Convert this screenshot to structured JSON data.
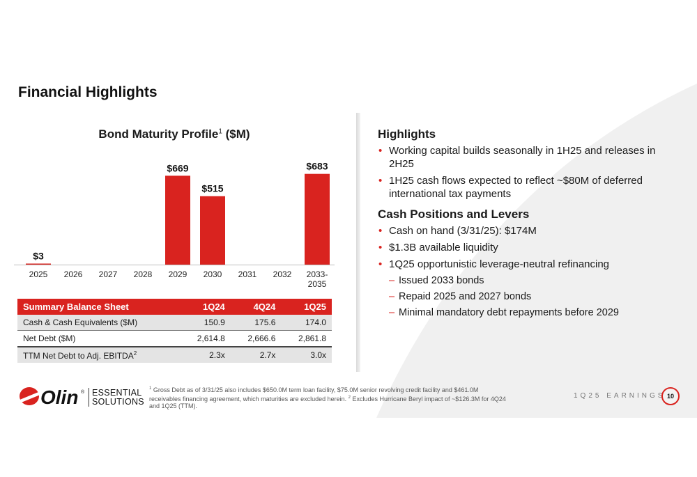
{
  "page": {
    "title": "Financial Highlights"
  },
  "chart_data": {
    "type": "bar",
    "title": "Bond Maturity Profile",
    "title_sup": "1",
    "title_unit": "($M)",
    "categories": [
      "2025",
      "2026",
      "2027",
      "2028",
      "2029",
      "2030",
      "2031",
      "2032",
      "2033-2035"
    ],
    "category_labels": [
      [
        "2025"
      ],
      [
        "2026"
      ],
      [
        "2027"
      ],
      [
        "2028"
      ],
      [
        "2029"
      ],
      [
        "2030"
      ],
      [
        "2031"
      ],
      [
        "2032"
      ],
      [
        "2033-",
        "2035"
      ]
    ],
    "values": [
      3,
      0,
      0,
      0,
      669,
      515,
      0,
      0,
      683
    ],
    "data_labels": [
      "$3",
      "",
      "",
      "",
      "$669",
      "$515",
      "",
      "",
      "$683"
    ],
    "bar_color": "#d9231f",
    "ylim": [
      0,
      760
    ]
  },
  "table": {
    "header": [
      "Summary Balance Sheet",
      "1Q24",
      "4Q24",
      "1Q25"
    ],
    "rows": [
      {
        "label": "Cash & Cash Equivalents ($M)",
        "values": [
          "150.9",
          "175.6",
          "174.0"
        ]
      },
      {
        "label": "Net Debt ($M)",
        "values": [
          "2,614.8",
          "2,666.6",
          "2,861.8"
        ]
      },
      {
        "label": "TTM Net Debt to Adj. EBITDA",
        "sup": "2",
        "values": [
          "2.3x",
          "2.7x",
          "3.0x"
        ]
      }
    ]
  },
  "highlights": {
    "heading": "Highlights",
    "items": [
      "Working capital builds seasonally in 1H25 and releases in 2H25",
      "1H25 cash flows expected to reflect ~$80M of deferred international tax payments"
    ]
  },
  "cash": {
    "heading": "Cash Positions and Levers",
    "items": [
      "Cash on hand (3/31/25): $174M",
      "$1.3B available liquidity",
      "1Q25 opportunistic leverage-neutral refinancing"
    ],
    "subitems": [
      "Issued 2033 bonds",
      "Repaid 2025 and 2027 bonds",
      "Minimal mandatory debt repayments before 2029"
    ]
  },
  "footer": {
    "logo_word": "Olin",
    "logo_registered": "®",
    "logo_line1": "ESSENTIAL",
    "logo_line2": "SOLUTIONS",
    "footnote_sup1": "1",
    "footnote_part1": " Gross Debt as of 3/31/25 also includes $650.0M term loan facility, $75.0M senior revolving credit facility and $461.0M receivables financing agreement, which maturities are excluded herein. ",
    "footnote_sup2": "2",
    "footnote_part2": " Excludes Hurricane Beryl impact of ~$126.3M for 4Q24 and 1Q25 (TTM).",
    "earnings_label": "1Q25 EARNINGS",
    "page_number": "10",
    "accent_color": "#d9231f"
  }
}
